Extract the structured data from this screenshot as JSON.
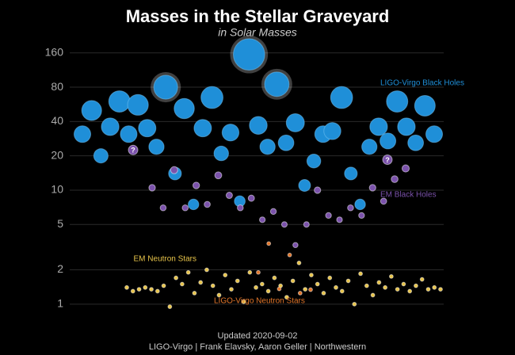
{
  "chart_data": {
    "type": "scatter",
    "title": "Masses in the Stellar Graveyard",
    "subtitle": "in Solar Masses",
    "log_scale": true,
    "grid": true,
    "ylim": [
      0.85,
      190
    ],
    "yticks": [
      1,
      2,
      5,
      10,
      20,
      40,
      80,
      160
    ],
    "series": [
      {
        "name": "LIGO-Virgo Black Holes",
        "color": "#1f8fd8",
        "values": [
          31,
          50,
          20,
          36,
          60,
          31,
          56,
          35,
          24,
          80,
          14,
          52,
          7.5,
          35,
          65,
          21,
          32,
          8,
          155,
          37,
          24,
          85,
          26,
          39,
          11,
          18,
          31,
          33,
          65,
          14,
          7.5,
          24,
          36,
          27,
          60,
          36,
          26,
          55,
          31
        ]
      },
      {
        "name": "EM Black Holes",
        "color": "#7b52ab",
        "values": [
          10.5,
          7,
          15,
          7,
          11,
          7.5,
          13.5,
          9,
          7,
          8.5,
          5.5,
          6.5,
          5,
          3.3,
          5,
          10,
          6,
          5.5,
          7,
          6,
          10.5,
          8,
          12.5,
          15.5
        ]
      },
      {
        "name": "EM Neutron Stars",
        "color": "#e8c44a",
        "values": [
          1.4,
          1.3,
          1.35,
          1.4,
          1.35,
          1.3,
          1.45,
          0.95,
          1.7,
          1.5,
          1.9,
          1.25,
          1.55,
          2.0,
          1.45,
          1.2,
          1.8,
          1.35,
          1.6,
          1.05,
          1.9,
          1.4,
          1.5,
          1.3,
          1.7,
          1.45,
          1.15,
          1.6,
          2.3,
          1.35,
          1.8,
          1.5,
          1.25,
          1.7,
          1.4,
          1.3,
          1.6,
          1.0,
          1.85,
          1.45,
          1.2,
          1.55,
          1.4,
          1.75,
          1.35,
          1.5,
          1.3,
          1.45,
          1.65,
          1.35,
          1.4,
          1.35
        ]
      },
      {
        "name": "LIGO-Virgo Neutron Stars",
        "color": "#e2762a",
        "values": [
          1.9,
          3.4,
          1.36,
          2.7,
          1.25,
          1.34
        ]
      }
    ],
    "unknown_objects": [
      {
        "value": 22.5,
        "label": "?"
      },
      {
        "value": 18.5,
        "label": "?"
      }
    ],
    "footer": [
      "Updated 2020-09-02",
      "LIGO-Virgo | Frank Elavsky, Aaron Geller | Northwestern"
    ]
  }
}
